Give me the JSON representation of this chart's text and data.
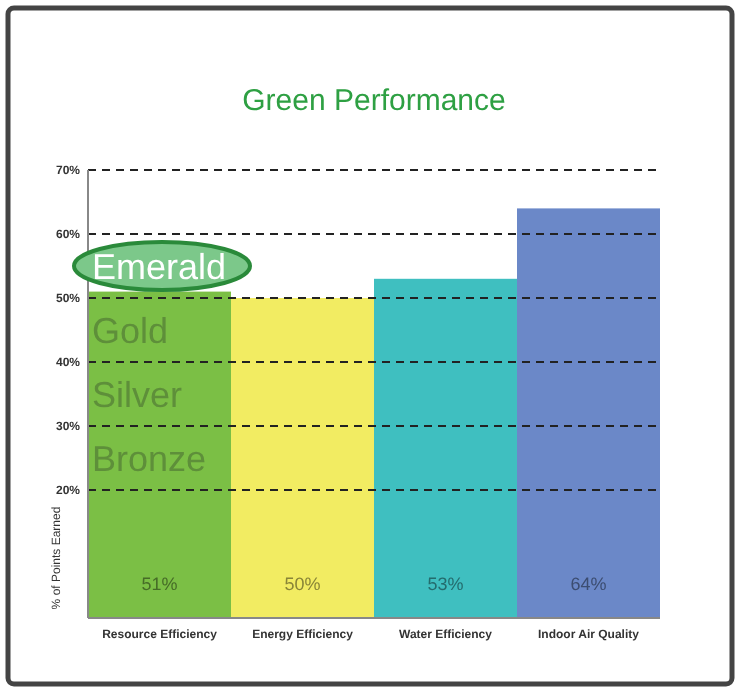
{
  "chart_data": {
    "type": "bar",
    "title": "Green Performance",
    "ylabel": "% of Points Earned",
    "categories": [
      "Resource Efficiency",
      "Energy Efficiency",
      "Water Efficiency",
      "Indoor Air Quality"
    ],
    "values": [
      51,
      50,
      53,
      64
    ],
    "colors": [
      "#7bbf45",
      "#f2ec62",
      "#3fbfc0",
      "#6b88c8"
    ],
    "value_labels": [
      "51%",
      "50%",
      "53%",
      "64%"
    ],
    "ylim": [
      0,
      70
    ],
    "yticks": [
      {
        "value": 20,
        "label": "20%"
      },
      {
        "value": 30,
        "label": "30%"
      },
      {
        "value": 40,
        "label": "40%"
      },
      {
        "value": 50,
        "label": "50%"
      },
      {
        "value": 60,
        "label": "60%"
      },
      {
        "value": 70,
        "label": "70%"
      }
    ],
    "grid": "y",
    "annotations": [
      "Emerald",
      "Gold",
      "Silver",
      "Bronze"
    ]
  }
}
